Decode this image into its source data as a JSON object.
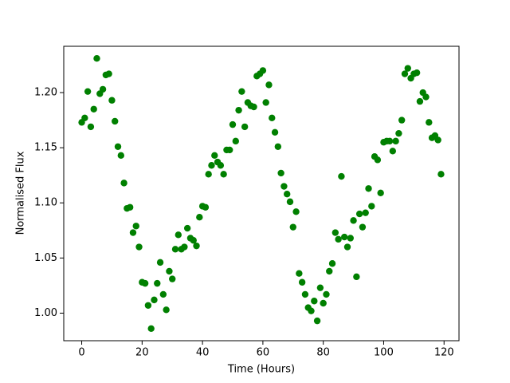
{
  "chart_data": {
    "type": "scatter",
    "xlabel": "Time (Hours)",
    "ylabel": "Normalised Flux",
    "color": "#008000",
    "x": [
      0,
      1,
      2,
      3,
      4,
      5,
      6,
      7,
      8,
      9,
      10,
      11,
      12,
      13,
      14,
      15,
      16,
      17,
      18,
      19,
      20,
      21,
      22,
      23,
      24,
      25,
      26,
      27,
      28,
      29,
      30,
      31,
      32,
      33,
      34,
      35,
      36,
      37,
      38,
      39,
      40,
      41,
      42,
      43,
      44,
      45,
      46,
      47,
      48,
      49,
      50,
      51,
      52,
      53,
      54,
      55,
      56,
      57,
      58,
      59,
      60,
      61,
      62,
      63,
      64,
      65,
      66,
      67,
      68,
      69,
      70,
      71,
      72,
      73,
      74,
      75,
      76,
      77,
      78,
      79,
      80,
      81,
      82,
      83,
      84,
      85,
      86,
      87,
      88,
      89,
      90,
      91,
      92,
      93,
      94,
      95,
      96,
      97,
      98,
      99,
      100,
      101,
      102,
      103,
      104,
      105,
      106,
      107,
      108,
      109,
      110,
      111,
      112,
      113,
      114,
      115,
      116,
      117,
      118,
      119
    ],
    "values": [
      1.173,
      1.177,
      1.201,
      1.169,
      1.185,
      1.231,
      1.199,
      1.203,
      1.216,
      1.217,
      1.193,
      1.174,
      1.151,
      1.143,
      1.118,
      1.095,
      1.096,
      1.073,
      1.079,
      1.06,
      1.028,
      1.027,
      1.007,
      0.986,
      1.012,
      1.027,
      1.046,
      1.017,
      1.003,
      1.038,
      1.031,
      1.058,
      1.071,
      1.058,
      1.06,
      1.077,
      1.068,
      1.066,
      1.061,
      1.087,
      1.097,
      1.096,
      1.126,
      1.134,
      1.143,
      1.137,
      1.134,
      1.126,
      1.148,
      1.148,
      1.171,
      1.156,
      1.184,
      1.201,
      1.169,
      1.191,
      1.188,
      1.187,
      1.215,
      1.217,
      1.22,
      1.191,
      1.207,
      1.177,
      1.164,
      1.151,
      1.127,
      1.115,
      1.108,
      1.101,
      1.078,
      1.092,
      1.036,
      1.028,
      1.017,
      1.005,
      1.002,
      1.011,
      0.993,
      1.023,
      1.009,
      1.017,
      1.038,
      1.045,
      1.073,
      1.067,
      1.124,
      1.069,
      1.06,
      1.068,
      1.084,
      1.033,
      1.09,
      1.078,
      1.091,
      1.113,
      1.097,
      1.142,
      1.139,
      1.109,
      1.155,
      1.156,
      1.156,
      1.147,
      1.156,
      1.163,
      1.175,
      1.217,
      1.222,
      1.213,
      1.217,
      1.218,
      1.192,
      1.2,
      1.196,
      1.173,
      1.159,
      1.161,
      1.157,
      1.126
    ],
    "xlim": [
      -5.95,
      124.95
    ],
    "xticks": [
      0,
      20,
      40,
      60,
      80,
      100,
      120
    ],
    "ylim": [
      0.975,
      1.242
    ],
    "yticks": [
      {
        "value": 1,
        "label": "1.00"
      },
      1.05,
      {
        "value": 1.1,
        "label": "1.10"
      },
      1.15,
      {
        "value": 1.2,
        "label": "1.20"
      }
    ]
  }
}
